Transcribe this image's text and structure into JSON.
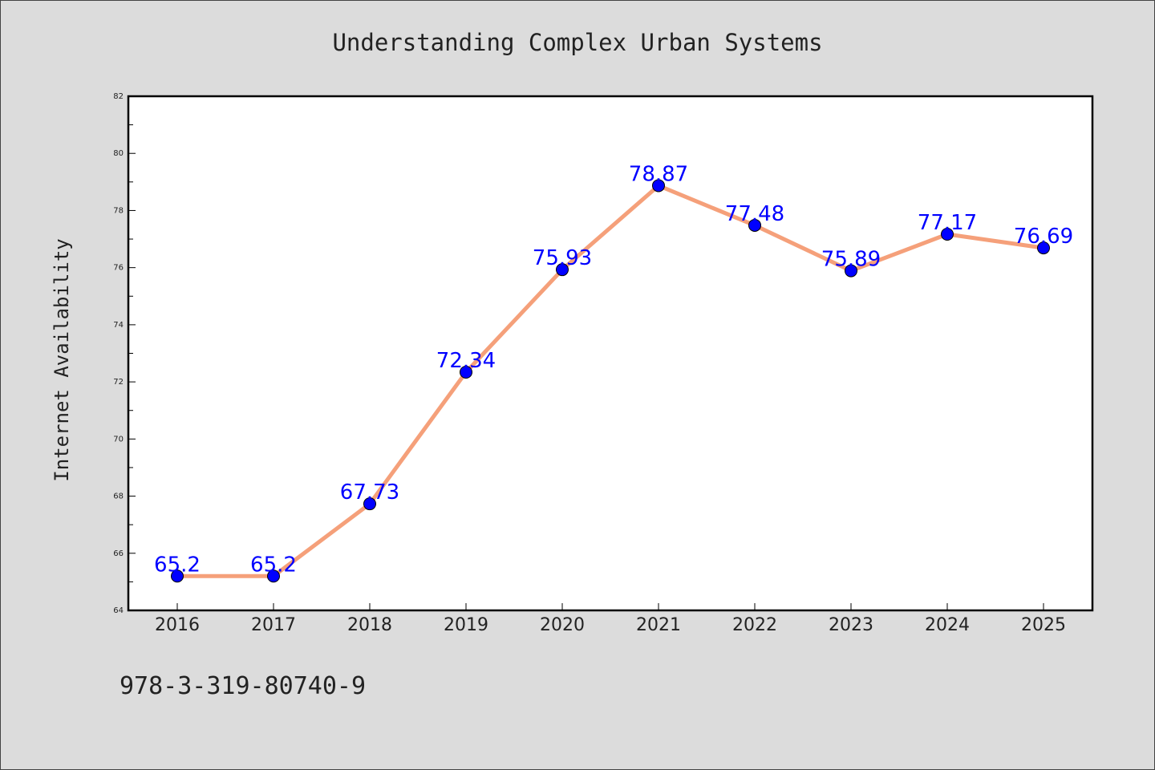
{
  "colors": {
    "background": "#dcdcdc",
    "plot_background": "#ffffff",
    "line": "#f5a07a",
    "marker": "#0000ff",
    "data_label": "#0000ff",
    "text": "#222222"
  },
  "footer": {
    "isbn": "978-3-319-80740-9"
  },
  "chart_data": {
    "type": "line",
    "title": "Understanding Complex Urban Systems",
    "xlabel": "",
    "ylabel": "Internet Availability",
    "categories": [
      "2016",
      "2017",
      "2018",
      "2019",
      "2020",
      "2021",
      "2022",
      "2023",
      "2024",
      "2025"
    ],
    "values": [
      65.2,
      65.2,
      67.73,
      72.34,
      75.93,
      78.87,
      77.48,
      75.89,
      77.17,
      76.69
    ],
    "data_labels": [
      "65.2",
      "65.2",
      "67.73",
      "72.34",
      "75.93",
      "78.87",
      "77.48",
      "75.89",
      "77.17",
      "76.69"
    ],
    "ylim": [
      64,
      82
    ],
    "yticks": [
      64,
      66,
      68,
      70,
      72,
      74,
      76,
      78,
      80,
      82
    ],
    "ytick_labels": [
      "64",
      "66",
      "68",
      "70",
      "72",
      "74",
      "76",
      "78",
      "80",
      "82"
    ],
    "grid": false,
    "legend": "none"
  }
}
